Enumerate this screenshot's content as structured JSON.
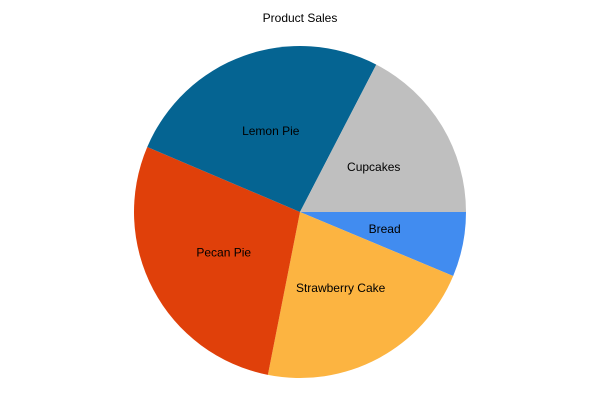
{
  "chart_data": {
    "type": "pie",
    "title": "Product Sales",
    "start_angle_deg": 0,
    "direction": "clockwise",
    "slices": [
      {
        "label": "Bread",
        "value": 6.3,
        "color": "#418CF0"
      },
      {
        "label": "Strawberry Cake",
        "value": 21.8,
        "color": "#FCB441"
      },
      {
        "label": "Pecan Pie",
        "value": 28.3,
        "color": "#E0400A"
      },
      {
        "label": "Lemon Pie",
        "value": 26.2,
        "color": "#056492"
      },
      {
        "label": "Cupcakes",
        "value": 17.4,
        "color": "#BFBFBF"
      }
    ]
  }
}
